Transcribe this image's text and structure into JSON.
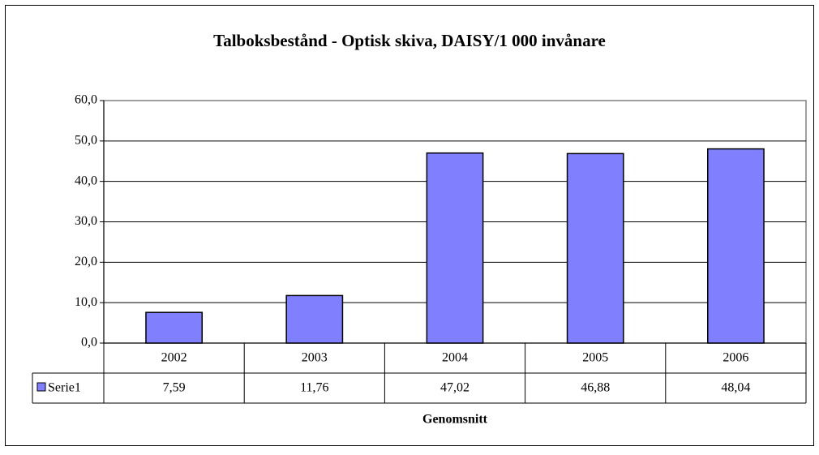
{
  "chart_data": {
    "type": "bar",
    "title": "Talboksbestånd - Optisk skiva, DAISY/1 000 invånare",
    "x_label": "Genomsnitt",
    "categories": [
      "2002",
      "2003",
      "2004",
      "2005",
      "2006"
    ],
    "series": [
      {
        "name": "Serie1",
        "color": "#8080ff",
        "values": [
          7.59,
          11.76,
          47.02,
          46.88,
          48.04
        ],
        "value_labels": [
          "7,59",
          "11,76",
          "47,02",
          "46,88",
          "48,04"
        ]
      }
    ],
    "ylim": [
      0,
      60
    ],
    "yticks": [
      {
        "value": 0,
        "label": "0,0"
      },
      {
        "value": 10,
        "label": "10,0"
      },
      {
        "value": 20,
        "label": "20,0"
      },
      {
        "value": 30,
        "label": "30,0"
      },
      {
        "value": 40,
        "label": "40,0"
      },
      {
        "value": 50,
        "label": "50,0"
      },
      {
        "value": 60,
        "label": "60,0"
      }
    ],
    "grid": true
  }
}
